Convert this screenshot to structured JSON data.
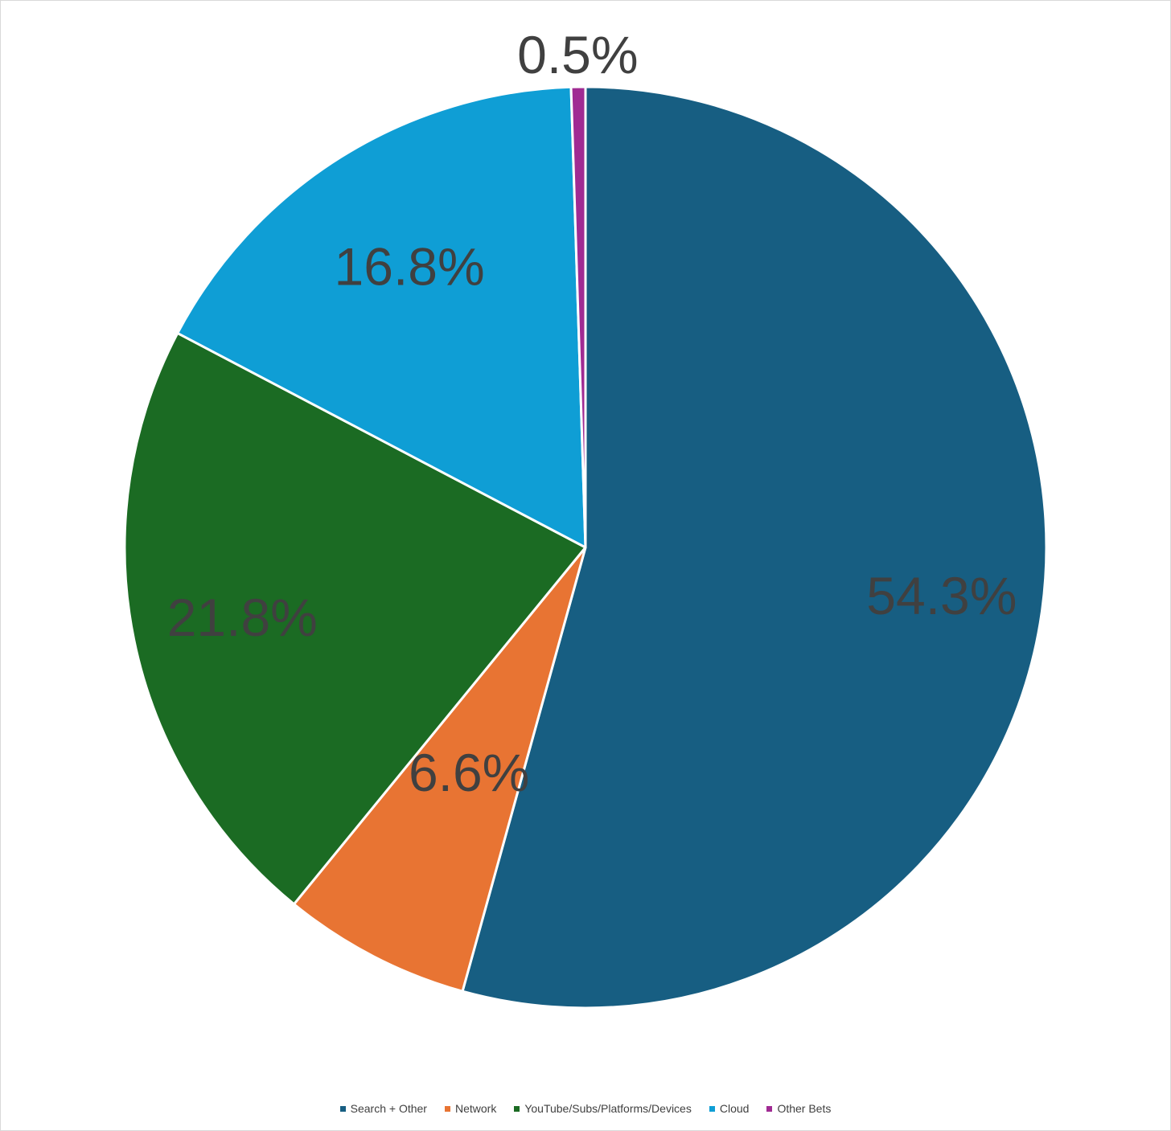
{
  "chart_data": {
    "type": "pie",
    "title": "",
    "categories": [
      "Search + Other",
      "Network",
      "YouTube/Subs/Platforms/Devices",
      "Cloud",
      "Other Bets"
    ],
    "values": [
      54.3,
      6.6,
      21.8,
      16.8,
      0.5
    ],
    "labels": [
      "54.3%",
      "6.6%",
      "21.8%",
      "16.8%",
      "0.5%"
    ],
    "colors": [
      "#175e82",
      "#e87433",
      "#1b6b23",
      "#0f9ed5",
      "#a02b93"
    ],
    "start_angle_deg": 0,
    "direction": "clockwise",
    "legend_position": "bottom",
    "legend": [
      {
        "name": "Search + Other",
        "color": "#175e82"
      },
      {
        "name": "Network",
        "color": "#e87433"
      },
      {
        "name": "YouTube/Subs/Platforms/Devices",
        "color": "#1b6b23"
      },
      {
        "name": "Cloud",
        "color": "#0f9ed5"
      },
      {
        "name": "Other Bets",
        "color": "#a02b93"
      }
    ]
  }
}
